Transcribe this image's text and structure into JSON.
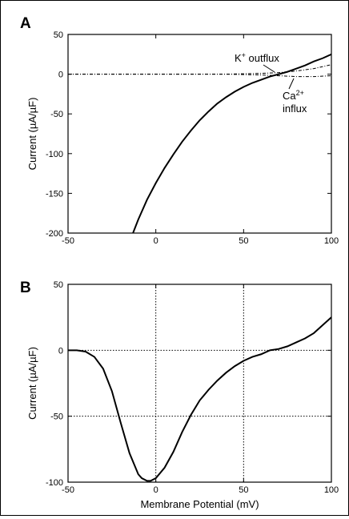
{
  "chart_data": [
    {
      "type": "line",
      "panel_label": "A",
      "ylabel": "Current (µA/µF)",
      "xlabel": "",
      "xlim": [
        -50,
        100
      ],
      "ylim": [
        -200,
        50
      ],
      "x_ticks": [
        -50,
        0,
        50,
        100
      ],
      "y_ticks": [
        50,
        0,
        -50,
        -100,
        -150,
        -200
      ],
      "grid": false,
      "annotations": [
        {
          "text": "K",
          "sup": "+",
          "rest": " outflux"
        },
        {
          "text": "Ca",
          "sup": "2+",
          "rest": "",
          "line2": "influx"
        }
      ],
      "series": [
        {
          "style": "dash-dot",
          "x": [
            -50,
            -20,
            0,
            20,
            40,
            60,
            70,
            80,
            90,
            100
          ],
          "y": [
            0,
            0,
            0,
            0,
            0,
            1,
            2,
            4,
            7,
            12
          ]
        },
        {
          "style": "dash-dot",
          "x": [
            -50,
            0,
            40,
            60,
            70,
            80,
            90,
            100
          ],
          "y": [
            0,
            0,
            0,
            -1,
            -2,
            -3,
            -3,
            -2
          ]
        },
        {
          "style": "solid",
          "x": [
            -13,
            -10,
            -5,
            0,
            5,
            10,
            15,
            20,
            25,
            30,
            35,
            40,
            45,
            50,
            55,
            60,
            65,
            70,
            75,
            80,
            85,
            90,
            95,
            100
          ],
          "y": [
            -200,
            -183,
            -158,
            -137,
            -118,
            -101,
            -85,
            -71,
            -58,
            -47,
            -37,
            -29,
            -22,
            -16,
            -11,
            -7,
            -3,
            0,
            3,
            7,
            11,
            16,
            20,
            25
          ]
        }
      ]
    },
    {
      "type": "line",
      "panel_label": "B",
      "ylabel": "Current (µA/µF)",
      "xlabel": "Membrane Potential (mV)",
      "xlim": [
        -50,
        100
      ],
      "ylim": [
        -100,
        50
      ],
      "x_ticks": [
        -50,
        0,
        50,
        100
      ],
      "y_ticks": [
        50,
        0,
        -50,
        -100
      ],
      "grid": true,
      "series": [
        {
          "style": "solid",
          "x": [
            -50,
            -45,
            -40,
            -35,
            -30,
            -25,
            -20,
            -15,
            -10,
            -8,
            -5,
            -3,
            0,
            5,
            10,
            15,
            20,
            25,
            30,
            35,
            40,
            45,
            50,
            55,
            60,
            65,
            70,
            75,
            80,
            85,
            90,
            95,
            100
          ],
          "y": [
            0,
            0,
            -1,
            -5,
            -14,
            -31,
            -55,
            -78,
            -94,
            -97,
            -99,
            -99,
            -97,
            -89,
            -77,
            -62,
            -49,
            -38,
            -30,
            -23,
            -17,
            -12,
            -8,
            -5,
            -3,
            0,
            1,
            3,
            6,
            9,
            13,
            19,
            25
          ]
        }
      ]
    }
  ]
}
